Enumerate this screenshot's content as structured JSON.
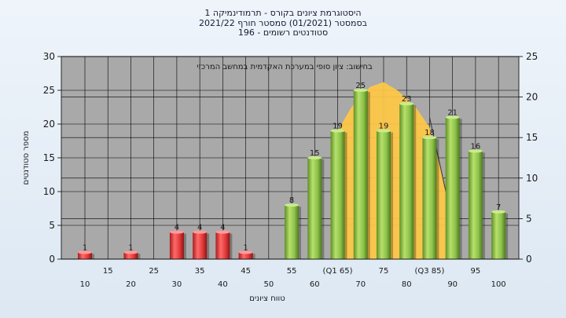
{
  "header": {
    "line1": "היסטוגרמת ציונים בקורס - תרמודינמיקה 1",
    "line2": "בסמסטר  (01/2021)  סמסטר חורף  2021/22",
    "line3": "סטודנטים רשומים - 196"
  },
  "colors": {
    "plot_bg": "#a9a9a9",
    "fail_bar": "#e23a3a",
    "pass_bar": "#8cc24a",
    "distribution": "#ffc845",
    "grid": "#000000"
  },
  "chart_data": {
    "type": "bar",
    "title": "היסטוגרמת ציונים בקורס - תרמודינמיקה 1",
    "xlabel": "טווח ציונים",
    "ylabel": "מספר סטודנטים",
    "ylim": [
      0,
      30
    ],
    "y2lim": [
      0,
      25
    ],
    "yticks": [
      0,
      5,
      10,
      15,
      20,
      25,
      30
    ],
    "y2ticks": [
      0,
      5,
      10,
      15,
      20,
      25
    ],
    "grid": true,
    "x_tick_labels": [
      "10",
      "15",
      "20",
      "25",
      "30",
      "35",
      "40",
      "45",
      "50",
      "55",
      "60",
      "(Q1 65)",
      "70",
      "75",
      "80",
      "(Q3 85)",
      "90",
      "95",
      "100"
    ],
    "bars": [
      {
        "bin": 10,
        "value": 1,
        "label": "1",
        "pass": false
      },
      {
        "bin": 20,
        "value": 1,
        "label": "1",
        "pass": false
      },
      {
        "bin": 30,
        "value": 4,
        "label": "4",
        "pass": false
      },
      {
        "bin": 35,
        "value": 4,
        "label": "4",
        "pass": false
      },
      {
        "bin": 40,
        "value": 4,
        "label": "4",
        "pass": false
      },
      {
        "bin": 45,
        "value": 1,
        "label": "1",
        "pass": false
      },
      {
        "bin": 55,
        "value": 8,
        "label": "8",
        "pass": true
      },
      {
        "bin": 60,
        "value": 15,
        "label": "15",
        "pass": true
      },
      {
        "bin": 65,
        "value": 19,
        "label": "19",
        "pass": true
      },
      {
        "bin": 70,
        "value": 25,
        "label": "25",
        "pass": true
      },
      {
        "bin": 75,
        "value": 19,
        "label": "19",
        "pass": true
      },
      {
        "bin": 80,
        "value": 23,
        "label": "23",
        "pass": true
      },
      {
        "bin": 85,
        "value": 18,
        "label": "18",
        "pass": true
      },
      {
        "bin": 90,
        "value": 21,
        "label": "21",
        "pass": true
      },
      {
        "bin": 95,
        "value": 16,
        "label": "16",
        "pass": true
      },
      {
        "bin": 100,
        "value": 7,
        "label": "7",
        "pass": true
      }
    ],
    "distribution_area": {
      "description_text": "בחישוב: ציון סופי במערכת האקדמית במחשב המרכזי",
      "points": [
        [
          65,
          19
        ],
        [
          68,
          22.5
        ],
        [
          72,
          25.5
        ],
        [
          75,
          26.2
        ],
        [
          78,
          25
        ],
        [
          82,
          22.5
        ],
        [
          85,
          19.5
        ],
        [
          88,
          12
        ],
        [
          89.5,
          7
        ]
      ]
    }
  }
}
